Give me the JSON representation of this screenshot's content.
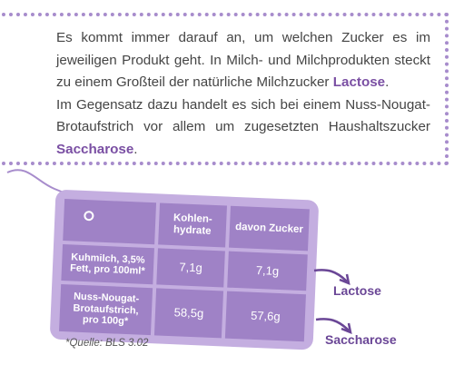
{
  "paragraph1": {
    "before": "Es kommt immer darauf an, um welchen Zucker es im jeweiligen Produkt geht. In Milch- und Milchprodukten steckt zu einem Großteil der natürliche Milchzucker ",
    "highlight": "Lactose",
    "after": "."
  },
  "paragraph2": {
    "before": "Im Gegensatz dazu handelt es sich bei einem Nuss-Nougat-Brotaufstrich vor allem um zugesetzten Haushaltszucker ",
    "highlight": "Saccharose",
    "after": "."
  },
  "table": {
    "headers": [
      "Kohlen-\nhydrate",
      "davon Zucker"
    ],
    "rows": [
      {
        "label": "Kuhmilch, 3,5%\nFett, pro 100ml*",
        "values": [
          "7,1g",
          "7,1g"
        ]
      },
      {
        "label": "Nuss-Nougat-\nBrotaufstrich,\npro 100g*",
        "values": [
          "58,5g",
          "57,6g"
        ]
      }
    ]
  },
  "source": "*Quelle: BLS 3.02",
  "labels": {
    "lactose": "Lactose",
    "saccharose": "Saccharose"
  },
  "colors": {
    "accent": "#7a4fa3",
    "tag_bg": "#c4aee0",
    "cell_bg": "#9f82c6",
    "dots": "#a78ccc"
  }
}
